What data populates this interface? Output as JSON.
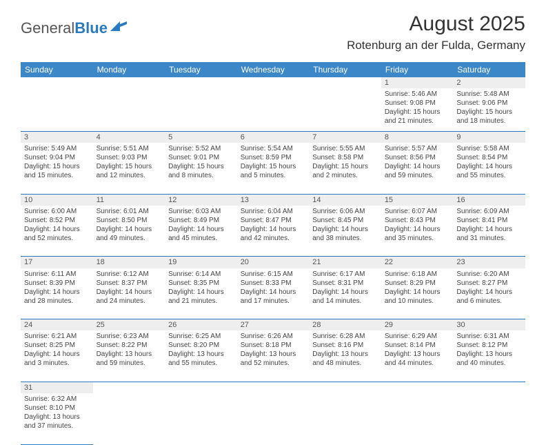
{
  "brand": {
    "part1": "General",
    "part2": "Blue"
  },
  "title": "August 2025",
  "location": "Rotenburg an der Fulda, Germany",
  "colors": {
    "header_bg": "#3b87c8",
    "header_text": "#ffffff",
    "daynum_bg": "#eeeeee",
    "border": "#2a7ac0",
    "text": "#444444",
    "title": "#333333"
  },
  "weekdays": [
    "Sunday",
    "Monday",
    "Tuesday",
    "Wednesday",
    "Thursday",
    "Friday",
    "Saturday"
  ],
  "weeks": [
    [
      null,
      null,
      null,
      null,
      null,
      {
        "n": "1",
        "sr": "Sunrise: 5:46 AM",
        "ss": "Sunset: 9:08 PM",
        "d1": "Daylight: 15 hours",
        "d2": "and 21 minutes."
      },
      {
        "n": "2",
        "sr": "Sunrise: 5:48 AM",
        "ss": "Sunset: 9:06 PM",
        "d1": "Daylight: 15 hours",
        "d2": "and 18 minutes."
      }
    ],
    [
      {
        "n": "3",
        "sr": "Sunrise: 5:49 AM",
        "ss": "Sunset: 9:04 PM",
        "d1": "Daylight: 15 hours",
        "d2": "and 15 minutes."
      },
      {
        "n": "4",
        "sr": "Sunrise: 5:51 AM",
        "ss": "Sunset: 9:03 PM",
        "d1": "Daylight: 15 hours",
        "d2": "and 12 minutes."
      },
      {
        "n": "5",
        "sr": "Sunrise: 5:52 AM",
        "ss": "Sunset: 9:01 PM",
        "d1": "Daylight: 15 hours",
        "d2": "and 8 minutes."
      },
      {
        "n": "6",
        "sr": "Sunrise: 5:54 AM",
        "ss": "Sunset: 8:59 PM",
        "d1": "Daylight: 15 hours",
        "d2": "and 5 minutes."
      },
      {
        "n": "7",
        "sr": "Sunrise: 5:55 AM",
        "ss": "Sunset: 8:58 PM",
        "d1": "Daylight: 15 hours",
        "d2": "and 2 minutes."
      },
      {
        "n": "8",
        "sr": "Sunrise: 5:57 AM",
        "ss": "Sunset: 8:56 PM",
        "d1": "Daylight: 14 hours",
        "d2": "and 59 minutes."
      },
      {
        "n": "9",
        "sr": "Sunrise: 5:58 AM",
        "ss": "Sunset: 8:54 PM",
        "d1": "Daylight: 14 hours",
        "d2": "and 55 minutes."
      }
    ],
    [
      {
        "n": "10",
        "sr": "Sunrise: 6:00 AM",
        "ss": "Sunset: 8:52 PM",
        "d1": "Daylight: 14 hours",
        "d2": "and 52 minutes."
      },
      {
        "n": "11",
        "sr": "Sunrise: 6:01 AM",
        "ss": "Sunset: 8:50 PM",
        "d1": "Daylight: 14 hours",
        "d2": "and 49 minutes."
      },
      {
        "n": "12",
        "sr": "Sunrise: 6:03 AM",
        "ss": "Sunset: 8:49 PM",
        "d1": "Daylight: 14 hours",
        "d2": "and 45 minutes."
      },
      {
        "n": "13",
        "sr": "Sunrise: 6:04 AM",
        "ss": "Sunset: 8:47 PM",
        "d1": "Daylight: 14 hours",
        "d2": "and 42 minutes."
      },
      {
        "n": "14",
        "sr": "Sunrise: 6:06 AM",
        "ss": "Sunset: 8:45 PM",
        "d1": "Daylight: 14 hours",
        "d2": "and 38 minutes."
      },
      {
        "n": "15",
        "sr": "Sunrise: 6:07 AM",
        "ss": "Sunset: 8:43 PM",
        "d1": "Daylight: 14 hours",
        "d2": "and 35 minutes."
      },
      {
        "n": "16",
        "sr": "Sunrise: 6:09 AM",
        "ss": "Sunset: 8:41 PM",
        "d1": "Daylight: 14 hours",
        "d2": "and 31 minutes."
      }
    ],
    [
      {
        "n": "17",
        "sr": "Sunrise: 6:11 AM",
        "ss": "Sunset: 8:39 PM",
        "d1": "Daylight: 14 hours",
        "d2": "and 28 minutes."
      },
      {
        "n": "18",
        "sr": "Sunrise: 6:12 AM",
        "ss": "Sunset: 8:37 PM",
        "d1": "Daylight: 14 hours",
        "d2": "and 24 minutes."
      },
      {
        "n": "19",
        "sr": "Sunrise: 6:14 AM",
        "ss": "Sunset: 8:35 PM",
        "d1": "Daylight: 14 hours",
        "d2": "and 21 minutes."
      },
      {
        "n": "20",
        "sr": "Sunrise: 6:15 AM",
        "ss": "Sunset: 8:33 PM",
        "d1": "Daylight: 14 hours",
        "d2": "and 17 minutes."
      },
      {
        "n": "21",
        "sr": "Sunrise: 6:17 AM",
        "ss": "Sunset: 8:31 PM",
        "d1": "Daylight: 14 hours",
        "d2": "and 14 minutes."
      },
      {
        "n": "22",
        "sr": "Sunrise: 6:18 AM",
        "ss": "Sunset: 8:29 PM",
        "d1": "Daylight: 14 hours",
        "d2": "and 10 minutes."
      },
      {
        "n": "23",
        "sr": "Sunrise: 6:20 AM",
        "ss": "Sunset: 8:27 PM",
        "d1": "Daylight: 14 hours",
        "d2": "and 6 minutes."
      }
    ],
    [
      {
        "n": "24",
        "sr": "Sunrise: 6:21 AM",
        "ss": "Sunset: 8:25 PM",
        "d1": "Daylight: 14 hours",
        "d2": "and 3 minutes."
      },
      {
        "n": "25",
        "sr": "Sunrise: 6:23 AM",
        "ss": "Sunset: 8:22 PM",
        "d1": "Daylight: 13 hours",
        "d2": "and 59 minutes."
      },
      {
        "n": "26",
        "sr": "Sunrise: 6:25 AM",
        "ss": "Sunset: 8:20 PM",
        "d1": "Daylight: 13 hours",
        "d2": "and 55 minutes."
      },
      {
        "n": "27",
        "sr": "Sunrise: 6:26 AM",
        "ss": "Sunset: 8:18 PM",
        "d1": "Daylight: 13 hours",
        "d2": "and 52 minutes."
      },
      {
        "n": "28",
        "sr": "Sunrise: 6:28 AM",
        "ss": "Sunset: 8:16 PM",
        "d1": "Daylight: 13 hours",
        "d2": "and 48 minutes."
      },
      {
        "n": "29",
        "sr": "Sunrise: 6:29 AM",
        "ss": "Sunset: 8:14 PM",
        "d1": "Daylight: 13 hours",
        "d2": "and 44 minutes."
      },
      {
        "n": "30",
        "sr": "Sunrise: 6:31 AM",
        "ss": "Sunset: 8:12 PM",
        "d1": "Daylight: 13 hours",
        "d2": "and 40 minutes."
      }
    ],
    [
      {
        "n": "31",
        "sr": "Sunrise: 6:32 AM",
        "ss": "Sunset: 8:10 PM",
        "d1": "Daylight: 13 hours",
        "d2": "and 37 minutes."
      },
      null,
      null,
      null,
      null,
      null,
      null
    ]
  ]
}
